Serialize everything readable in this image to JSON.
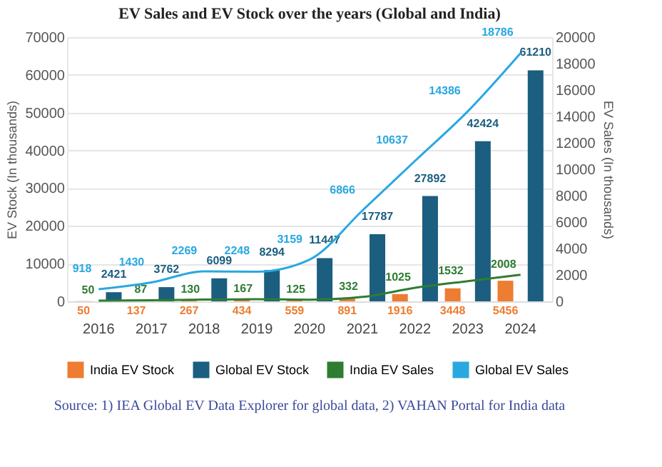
{
  "chart_data": {
    "type": "bar",
    "title": "EV Sales and EV Stock over the years (Global and India)",
    "ylabel": "EV Stock (In thousands)",
    "y2label": "EV Sales (In thousands)",
    "categories": [
      "2016",
      "2017",
      "2018",
      "2019",
      "2020",
      "2021",
      "2022",
      "2023",
      "2024"
    ],
    "series": [
      {
        "name": "India EV Stock",
        "color": "#ed7d31",
        "values": [
          50,
          137,
          267,
          434,
          559,
          891,
          1916,
          3448,
          5456
        ]
      },
      {
        "name": "Global EV Stock",
        "color": "#1b5e80",
        "values": [
          2421,
          3762,
          6099,
          8294,
          11447,
          17787,
          27892,
          42424,
          61210
        ]
      },
      {
        "name": "India EV Sales",
        "type": "line",
        "axis": "y2",
        "color": "#2e7d32",
        "values": [
          50,
          87,
          130,
          167,
          125,
          332,
          1025,
          1532,
          2008
        ]
      },
      {
        "name": "Global EV Sales",
        "type": "line",
        "axis": "y2",
        "color": "#29a8e0",
        "values": [
          918,
          1430,
          2269,
          2248,
          3159,
          6866,
          10637,
          14386,
          18786
        ]
      }
    ],
    "ylim": [
      0,
      70000
    ],
    "yticks": [
      0,
      10000,
      20000,
      30000,
      40000,
      50000,
      60000,
      70000
    ],
    "y2lim": [
      0,
      20000
    ],
    "y2ticks": [
      0,
      2000,
      4000,
      6000,
      8000,
      10000,
      12000,
      14000,
      16000,
      18000,
      20000
    ],
    "data_labels": true,
    "grid": "y",
    "legend": "bottom",
    "annotations": [
      "Source: 1) IEA Global EV Data Explorer for global data, 2) VAHAN Portal for India data"
    ]
  }
}
